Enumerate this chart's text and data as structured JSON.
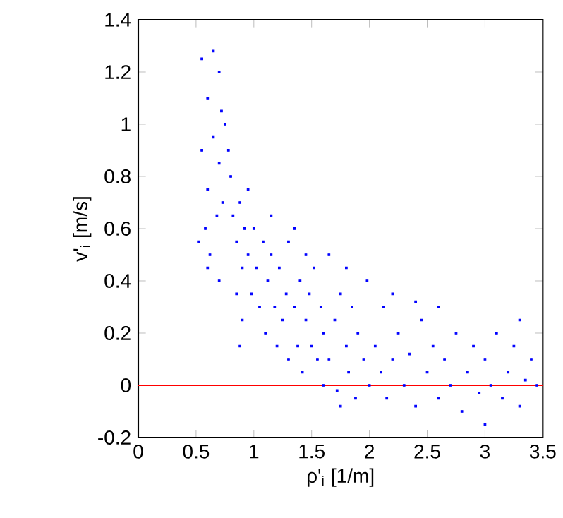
{
  "chart_data": {
    "type": "scatter",
    "xlabel": "ρ'$_{i}$  [1/m]",
    "ylabel": "v'$_{i}$ [m/s]",
    "xlim": [
      0,
      3.5
    ],
    "ylim": [
      -0.2,
      1.4
    ],
    "xticks": [
      0,
      0.5,
      1,
      1.5,
      2,
      2.5,
      3,
      3.5
    ],
    "yticks": [
      -0.2,
      0,
      0.2,
      0.4,
      0.6,
      0.8,
      1,
      1.2,
      1.4
    ],
    "marker": "square",
    "grid": false,
    "ref_lines": [
      {
        "axis": "y",
        "value": 0,
        "color": "#ff0000"
      }
    ],
    "series": [
      {
        "color": "#0000ff",
        "x": [
          0.55,
          0.6,
          0.65,
          0.7,
          0.72,
          0.55,
          0.6,
          0.65,
          0.7,
          0.75,
          0.58,
          0.62,
          0.68,
          0.73,
          0.52,
          0.6,
          0.7,
          0.78,
          0.8,
          0.82,
          0.85,
          0.88,
          0.9,
          0.92,
          0.95,
          0.98,
          0.85,
          0.9,
          0.95,
          1.0,
          0.88,
          1.02,
          1.05,
          1.08,
          1.1,
          1.12,
          1.15,
          1.18,
          1.2,
          1.22,
          1.25,
          1.28,
          1.3,
          1.15,
          1.3,
          1.35,
          1.35,
          1.38,
          1.4,
          1.42,
          1.45,
          1.48,
          1.5,
          1.52,
          1.55,
          1.58,
          1.6,
          1.6,
          1.45,
          1.65,
          1.65,
          1.7,
          1.72,
          1.75,
          1.8,
          1.82,
          1.85,
          1.88,
          1.9,
          1.95,
          1.98,
          2.0,
          1.8,
          1.75,
          2.05,
          2.1,
          2.12,
          2.15,
          2.2,
          2.25,
          2.3,
          2.35,
          2.4,
          2.45,
          2.5,
          2.2,
          2.4,
          2.55,
          2.6,
          2.65,
          2.7,
          2.75,
          2.8,
          2.85,
          2.9,
          2.95,
          3.0,
          3.05,
          3.1,
          3.15,
          3.2,
          3.25,
          3.3,
          3.35,
          3.4,
          3.45,
          2.6,
          3.3,
          3.0
        ],
        "values": [
          1.25,
          1.1,
          1.28,
          1.2,
          1.05,
          0.9,
          0.75,
          0.95,
          0.85,
          1.0,
          0.6,
          0.5,
          0.65,
          0.7,
          0.55,
          0.45,
          0.4,
          0.9,
          0.8,
          0.65,
          0.55,
          0.7,
          0.45,
          0.6,
          0.5,
          0.35,
          0.35,
          0.25,
          0.75,
          0.6,
          0.15,
          0.45,
          0.3,
          0.55,
          0.2,
          0.4,
          0.5,
          0.3,
          0.15,
          0.45,
          0.25,
          0.35,
          0.1,
          0.65,
          0.55,
          0.6,
          0.3,
          0.15,
          0.4,
          0.05,
          0.25,
          0.35,
          0.15,
          0.45,
          0.1,
          0.3,
          0.2,
          0.0,
          0.5,
          0.5,
          0.1,
          0.25,
          -0.02,
          0.35,
          0.15,
          0.05,
          0.3,
          -0.05,
          0.2,
          0.1,
          0.4,
          0.0,
          0.45,
          -0.08,
          0.15,
          0.05,
          0.3,
          -0.05,
          0.1,
          0.2,
          0.0,
          0.12,
          -0.08,
          0.25,
          0.05,
          0.35,
          0.32,
          0.15,
          -0.05,
          0.1,
          0.0,
          0.2,
          -0.1,
          0.05,
          0.15,
          -0.03,
          0.1,
          0.0,
          0.2,
          -0.05,
          0.05,
          0.15,
          -0.08,
          0.02,
          0.1,
          0.0,
          0.3,
          0.25,
          -0.15
        ]
      }
    ]
  }
}
